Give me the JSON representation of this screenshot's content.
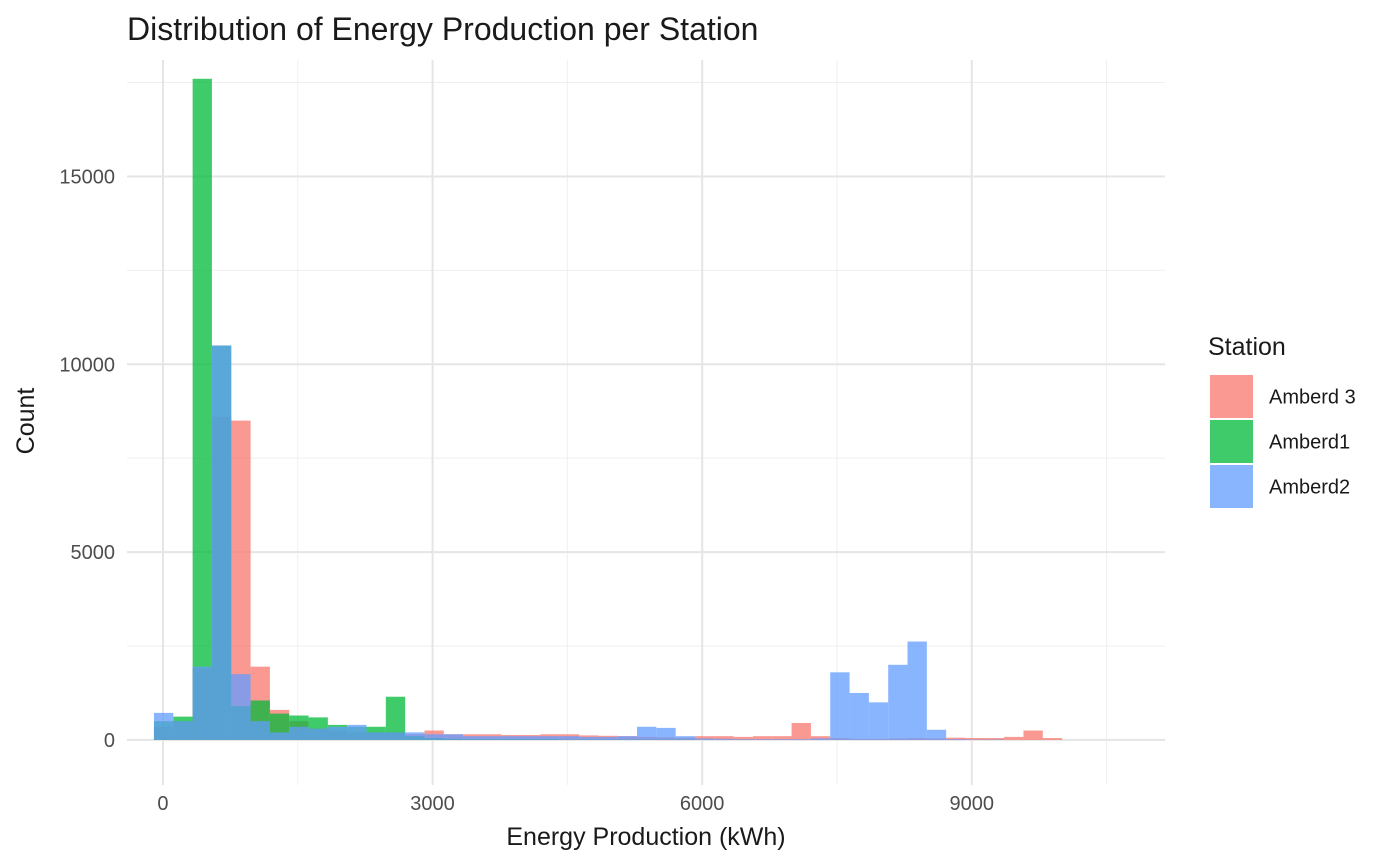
{
  "chart_data": {
    "type": "histogram",
    "title": "Distribution of Energy Production per Station",
    "xlabel": "Energy Production (kWh)",
    "ylabel": "Count",
    "xlim": [
      -400,
      11150
    ],
    "ylim": [
      -1200,
      18100
    ],
    "x_ticks": [
      0,
      3000,
      6000,
      9000
    ],
    "y_ticks": [
      0,
      5000,
      10000,
      15000
    ],
    "x_tick_labels": [
      "0",
      "3000",
      "6000",
      "9000"
    ],
    "y_tick_labels": [
      "0",
      "5000",
      "10000",
      "15000"
    ],
    "bin_width": 215,
    "bins_start": -100,
    "grid": true,
    "legend": {
      "title": "Station",
      "position": "right"
    },
    "series": [
      {
        "name": "Amberd 3",
        "color": "#F8766D",
        "values": [
          350,
          500,
          1900,
          8600,
          8500,
          1950,
          800,
          500,
          300,
          250,
          200,
          200,
          200,
          150,
          250,
          150,
          150,
          150,
          130,
          130,
          150,
          150,
          120,
          110,
          100,
          80,
          70,
          60,
          100,
          100,
          80,
          100,
          100,
          450,
          100,
          50,
          30,
          30,
          40,
          50,
          40,
          60,
          50,
          50,
          80,
          250,
          50
        ]
      },
      {
        "name": "Amberd1",
        "color": "#00BA38",
        "values": [
          500,
          620,
          17600,
          10500,
          900,
          1050,
          700,
          650,
          600,
          400,
          350,
          350,
          1150,
          100,
          50,
          30,
          20,
          20,
          20,
          20,
          20,
          10,
          10,
          10,
          10,
          10,
          10,
          10,
          0,
          0,
          0,
          0,
          0,
          0,
          0,
          0,
          0,
          0,
          0,
          0,
          0,
          0,
          0,
          0,
          0,
          0,
          0
        ]
      },
      {
        "name": "Amberd2",
        "color": "#619CFF",
        "values": [
          720,
          500,
          1950,
          10500,
          1750,
          500,
          200,
          350,
          300,
          350,
          400,
          200,
          200,
          200,
          150,
          150,
          100,
          100,
          100,
          100,
          100,
          100,
          80,
          80,
          100,
          350,
          320,
          100,
          40,
          30,
          20,
          20,
          20,
          20,
          40,
          1800,
          1250,
          1000,
          2000,
          2620,
          270,
          20,
          10,
          10,
          0,
          0,
          0
        ]
      }
    ]
  }
}
